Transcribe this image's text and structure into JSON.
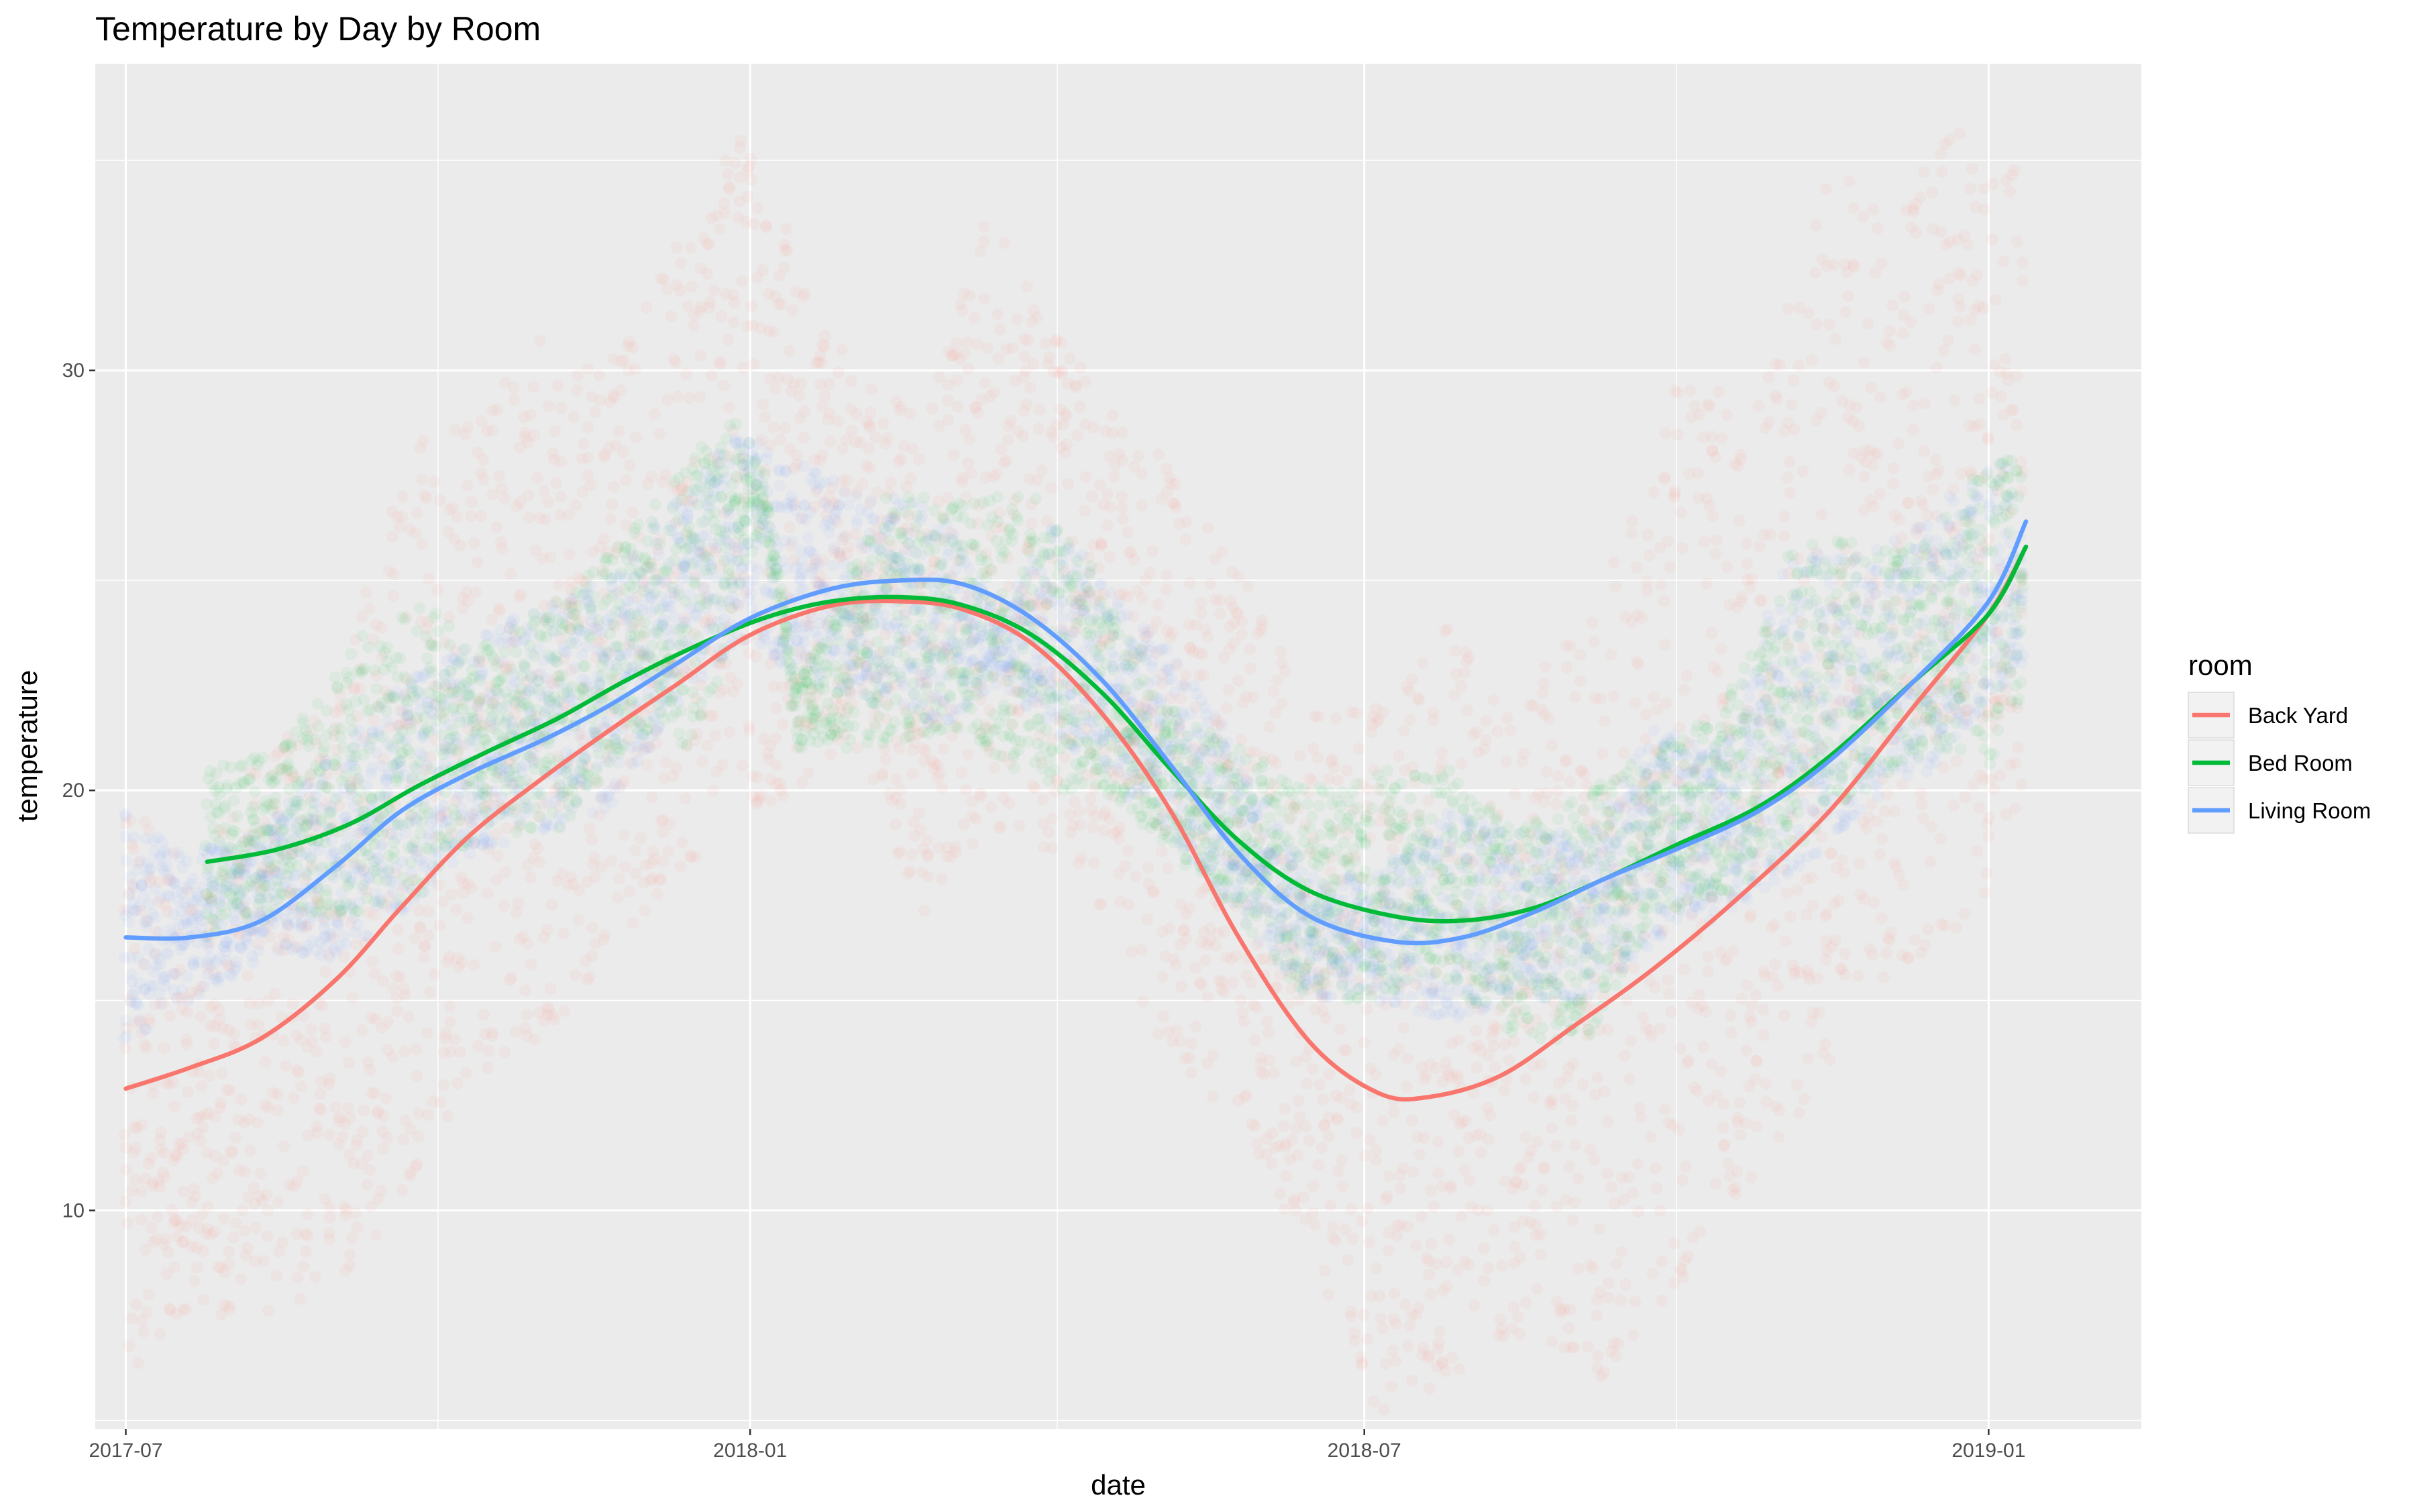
{
  "chart_data": {
    "type": "scatter",
    "title": "Temperature by Day by Room",
    "xlabel": "date",
    "ylabel": "temperature",
    "x_ticks": [
      "2017-07-01",
      "2018-01-01",
      "2018-07-01",
      "2019-01-01"
    ],
    "x_tick_labels": [
      "2017-07",
      "2018-01",
      "2018-07",
      "2019-01"
    ],
    "xlim": [
      "2017-06-22",
      "2019-02-15"
    ],
    "y_ticks": [
      10,
      20,
      30
    ],
    "y_tick_labels": [
      "10",
      "20",
      "30"
    ],
    "ylim": [
      4.8,
      37.3
    ],
    "grid": true,
    "legend": {
      "title": "room",
      "position": "right"
    },
    "point_alpha": 0.06,
    "series": [
      {
        "name": "Back Yard",
        "color": "#F8766D",
        "points_range": [
          {
            "x": "2017-07-01",
            "y": [
              6,
              20
            ]
          },
          {
            "x": "2017-07-20",
            "y": [
              7.5,
              18
            ]
          },
          {
            "x": "2017-08-10",
            "y": [
              7.5,
              21
            ]
          },
          {
            "x": "2017-09-01",
            "y": [
              8,
              22
            ]
          },
          {
            "x": "2017-09-20",
            "y": [
              10,
              28
            ]
          },
          {
            "x": "2017-10-10",
            "y": [
              13,
              29
            ]
          },
          {
            "x": "2017-11-01",
            "y": [
              14,
              31
            ]
          },
          {
            "x": "2017-11-20",
            "y": [
              16,
              30
            ]
          },
          {
            "x": "2017-12-10",
            "y": [
              18,
              33
            ]
          },
          {
            "x": "2017-12-28",
            "y": [
              19,
              36
            ]
          },
          {
            "x": "2018-02-01",
            "y": [
              21,
              30
            ]
          },
          {
            "x": "2018-02-20",
            "y": [
              17,
              29
            ]
          },
          {
            "x": "2018-03-10",
            "y": [
              19,
              34
            ]
          },
          {
            "x": "2018-04-10",
            "y": [
              18,
              30
            ]
          },
          {
            "x": "2018-05-01",
            "y": [
              14,
              28
            ]
          },
          {
            "x": "2018-05-20",
            "y": [
              12.5,
              26
            ]
          },
          {
            "x": "2018-06-15",
            "y": [
              9,
              22
            ]
          },
          {
            "x": "2018-07-05",
            "y": [
              5,
              22
            ]
          },
          {
            "x": "2018-07-25",
            "y": [
              6,
              24
            ]
          },
          {
            "x": "2018-08-15",
            "y": [
              7,
              22
            ]
          },
          {
            "x": "2018-09-10",
            "y": [
              6,
              25
            ]
          },
          {
            "x": "2018-10-01",
            "y": [
              8,
              30
            ]
          },
          {
            "x": "2018-10-25",
            "y": [
              11,
              29
            ]
          },
          {
            "x": "2018-11-15",
            "y": [
              13,
              35
            ]
          },
          {
            "x": "2018-12-05",
            "y": [
              16,
              34
            ]
          },
          {
            "x": "2018-12-25",
            "y": [
              16,
              36
            ]
          },
          {
            "x": "2019-01-12",
            "y": [
              20,
              35
            ]
          }
        ],
        "smooth": [
          {
            "x": "2017-07-01",
            "y": 12.9
          },
          {
            "x": "2017-07-20",
            "y": 13.4
          },
          {
            "x": "2017-08-10",
            "y": 14.1
          },
          {
            "x": "2017-09-01",
            "y": 15.5
          },
          {
            "x": "2017-09-20",
            "y": 17.2
          },
          {
            "x": "2017-10-10",
            "y": 18.9
          },
          {
            "x": "2017-11-01",
            "y": 20.3
          },
          {
            "x": "2017-11-20",
            "y": 21.4
          },
          {
            "x": "2017-12-10",
            "y": 22.5
          },
          {
            "x": "2018-01-01",
            "y": 23.7
          },
          {
            "x": "2018-01-25",
            "y": 24.4
          },
          {
            "x": "2018-02-15",
            "y": 24.5
          },
          {
            "x": "2018-03-05",
            "y": 24.3
          },
          {
            "x": "2018-03-25",
            "y": 23.5
          },
          {
            "x": "2018-04-15",
            "y": 21.8
          },
          {
            "x": "2018-05-05",
            "y": 19.5
          },
          {
            "x": "2018-05-25",
            "y": 16.5
          },
          {
            "x": "2018-06-15",
            "y": 14.0
          },
          {
            "x": "2018-07-05",
            "y": 12.8
          },
          {
            "x": "2018-07-20",
            "y": 12.7
          },
          {
            "x": "2018-08-10",
            "y": 13.2
          },
          {
            "x": "2018-09-01",
            "y": 14.4
          },
          {
            "x": "2018-09-25",
            "y": 15.8
          },
          {
            "x": "2018-10-20",
            "y": 17.5
          },
          {
            "x": "2018-11-15",
            "y": 19.5
          },
          {
            "x": "2018-12-10",
            "y": 22.0
          },
          {
            "x": "2019-01-01",
            "y": 24.2
          },
          {
            "x": "2019-01-12",
            "y": 25.8
          }
        ]
      },
      {
        "name": "Bed Room",
        "color": "#00BA38",
        "points_range": [
          {
            "x": "2017-07-25",
            "y": [
              16.5,
              20.5
            ]
          },
          {
            "x": "2017-08-15",
            "y": [
              17,
              21
            ]
          },
          {
            "x": "2017-09-05",
            "y": [
              17,
              23.5
            ]
          },
          {
            "x": "2017-09-25",
            "y": [
              17.5,
              24.5
            ]
          },
          {
            "x": "2017-10-15",
            "y": [
              19,
              23.5
            ]
          },
          {
            "x": "2017-11-05",
            "y": [
              19,
              24.5
            ]
          },
          {
            "x": "2017-11-25",
            "y": [
              21,
              26
            ]
          },
          {
            "x": "2017-12-15",
            "y": [
              21,
              28
            ]
          },
          {
            "x": "2017-12-28",
            "y": [
              24,
              29
            ]
          },
          {
            "x": "2018-01-05",
            "y": [
              26.5,
              27.5
            ]
          },
          {
            "x": "2018-01-15",
            "y": [
              21,
              22.5
            ]
          },
          {
            "x": "2018-02-10",
            "y": [
              21,
              27
            ]
          },
          {
            "x": "2018-03-05",
            "y": [
              21.5,
              27
            ]
          },
          {
            "x": "2018-03-25",
            "y": [
              20,
              27
            ]
          },
          {
            "x": "2018-04-15",
            "y": [
              20,
              25
            ]
          },
          {
            "x": "2018-05-05",
            "y": [
              18.5,
              22
            ]
          },
          {
            "x": "2018-06-15",
            "y": [
              15,
              20
            ]
          },
          {
            "x": "2018-07-05",
            "y": [
              15,
              20.5
            ]
          },
          {
            "x": "2018-07-25",
            "y": [
              15.5,
              20.5
            ]
          },
          {
            "x": "2018-08-15",
            "y": [
              14,
              19
            ]
          },
          {
            "x": "2018-09-05",
            "y": [
              14,
              20
            ]
          },
          {
            "x": "2018-09-25",
            "y": [
              17,
              21
            ]
          },
          {
            "x": "2018-10-15",
            "y": [
              17.5,
              22
            ]
          },
          {
            "x": "2018-11-05",
            "y": [
              18.5,
              26
            ]
          },
          {
            "x": "2018-11-25",
            "y": [
              20,
              26
            ]
          },
          {
            "x": "2018-12-15",
            "y": [
              21,
              26
            ]
          },
          {
            "x": "2019-01-01",
            "y": [
              20.5,
              28
            ]
          },
          {
            "x": "2019-01-12",
            "y": [
              22,
              28
            ]
          }
        ],
        "smooth": [
          {
            "x": "2017-07-25",
            "y": 18.3
          },
          {
            "x": "2017-08-15",
            "y": 18.6
          },
          {
            "x": "2017-09-05",
            "y": 19.2
          },
          {
            "x": "2017-09-25",
            "y": 20.1
          },
          {
            "x": "2017-10-15",
            "y": 20.9
          },
          {
            "x": "2017-11-05",
            "y": 21.7
          },
          {
            "x": "2017-11-25",
            "y": 22.6
          },
          {
            "x": "2017-12-15",
            "y": 23.4
          },
          {
            "x": "2018-01-05",
            "y": 24.1
          },
          {
            "x": "2018-01-25",
            "y": 24.5
          },
          {
            "x": "2018-02-15",
            "y": 24.6
          },
          {
            "x": "2018-03-05",
            "y": 24.4
          },
          {
            "x": "2018-03-25",
            "y": 23.7
          },
          {
            "x": "2018-04-15",
            "y": 22.3
          },
          {
            "x": "2018-05-05",
            "y": 20.5
          },
          {
            "x": "2018-05-25",
            "y": 18.8
          },
          {
            "x": "2018-06-15",
            "y": 17.6
          },
          {
            "x": "2018-07-10",
            "y": 17.0
          },
          {
            "x": "2018-07-30",
            "y": 16.9
          },
          {
            "x": "2018-08-20",
            "y": 17.2
          },
          {
            "x": "2018-09-10",
            "y": 17.9
          },
          {
            "x": "2018-10-01",
            "y": 18.7
          },
          {
            "x": "2018-10-25",
            "y": 19.6
          },
          {
            "x": "2018-11-15",
            "y": 20.8
          },
          {
            "x": "2018-12-10",
            "y": 22.6
          },
          {
            "x": "2019-01-01",
            "y": 24.2
          },
          {
            "x": "2019-01-12",
            "y": 25.8
          }
        ]
      },
      {
        "name": "Living Room",
        "color": "#619CFF",
        "points_range": [
          {
            "x": "2017-07-01",
            "y": [
              14,
              19.5
            ]
          },
          {
            "x": "2017-07-20",
            "y": [
              15,
              18.5
            ]
          },
          {
            "x": "2017-08-10",
            "y": [
              16,
              19
            ]
          },
          {
            "x": "2017-09-01",
            "y": [
              16,
              21
            ]
          },
          {
            "x": "2017-09-20",
            "y": [
              17,
              22.5
            ]
          },
          {
            "x": "2017-10-10",
            "y": [
              18.5,
              23.5
            ]
          },
          {
            "x": "2017-11-01",
            "y": [
              19,
              24.5
            ]
          },
          {
            "x": "2017-11-20",
            "y": [
              19.5,
              25
            ]
          },
          {
            "x": "2017-12-10",
            "y": [
              22,
              27
            ]
          },
          {
            "x": "2017-12-28",
            "y": [
              23.5,
              28.5
            ]
          },
          {
            "x": "2018-02-05",
            "y": [
              22,
              27
            ]
          },
          {
            "x": "2018-02-25",
            "y": [
              21.5,
              27
            ]
          },
          {
            "x": "2018-03-15",
            "y": [
              22.5,
              24
            ]
          },
          {
            "x": "2018-03-30",
            "y": [
              21.5,
              26.5
            ]
          },
          {
            "x": "2018-04-20",
            "y": [
              20,
              24.5
            ]
          },
          {
            "x": "2018-05-10",
            "y": [
              18.5,
              23
            ]
          },
          {
            "x": "2018-06-15",
            "y": [
              15,
              18
            ]
          },
          {
            "x": "2018-07-05",
            "y": [
              15,
              18
            ]
          },
          {
            "x": "2018-07-25",
            "y": [
              14.5,
              19.5
            ]
          },
          {
            "x": "2018-08-15",
            "y": [
              15,
              19
            ]
          },
          {
            "x": "2018-09-05",
            "y": [
              15,
              19
            ]
          },
          {
            "x": "2018-09-25",
            "y": [
              16.5,
              21.5
            ]
          },
          {
            "x": "2018-10-15",
            "y": [
              17,
              21
            ]
          },
          {
            "x": "2018-11-05",
            "y": [
              18,
              26
            ]
          },
          {
            "x": "2018-11-25",
            "y": [
              19.5,
              25.5
            ]
          },
          {
            "x": "2018-12-15",
            "y": [
              20.5,
              26.5
            ]
          },
          {
            "x": "2019-01-01",
            "y": [
              22,
              28
            ]
          },
          {
            "x": "2019-01-12",
            "y": [
              23,
              27.5
            ]
          }
        ],
        "smooth": [
          {
            "x": "2017-07-01",
            "y": 16.5
          },
          {
            "x": "2017-07-20",
            "y": 16.5
          },
          {
            "x": "2017-08-10",
            "y": 16.9
          },
          {
            "x": "2017-09-01",
            "y": 18.2
          },
          {
            "x": "2017-09-20",
            "y": 19.5
          },
          {
            "x": "2017-10-10",
            "y": 20.4
          },
          {
            "x": "2017-11-01",
            "y": 21.2
          },
          {
            "x": "2017-11-20",
            "y": 22.0
          },
          {
            "x": "2017-12-10",
            "y": 23.0
          },
          {
            "x": "2018-01-01",
            "y": 24.1
          },
          {
            "x": "2018-01-25",
            "y": 24.8
          },
          {
            "x": "2018-02-15",
            "y": 25.0
          },
          {
            "x": "2018-03-05",
            "y": 24.9
          },
          {
            "x": "2018-03-25",
            "y": 24.1
          },
          {
            "x": "2018-04-15",
            "y": 22.6
          },
          {
            "x": "2018-05-05",
            "y": 20.6
          },
          {
            "x": "2018-05-25",
            "y": 18.5
          },
          {
            "x": "2018-06-15",
            "y": 17.0
          },
          {
            "x": "2018-07-10",
            "y": 16.4
          },
          {
            "x": "2018-07-30",
            "y": 16.5
          },
          {
            "x": "2018-08-20",
            "y": 17.1
          },
          {
            "x": "2018-09-10",
            "y": 17.9
          },
          {
            "x": "2018-10-01",
            "y": 18.6
          },
          {
            "x": "2018-10-25",
            "y": 19.5
          },
          {
            "x": "2018-11-15",
            "y": 20.7
          },
          {
            "x": "2018-12-10",
            "y": 22.6
          },
          {
            "x": "2019-01-01",
            "y": 24.5
          },
          {
            "x": "2019-01-12",
            "y": 26.4
          }
        ]
      }
    ]
  }
}
